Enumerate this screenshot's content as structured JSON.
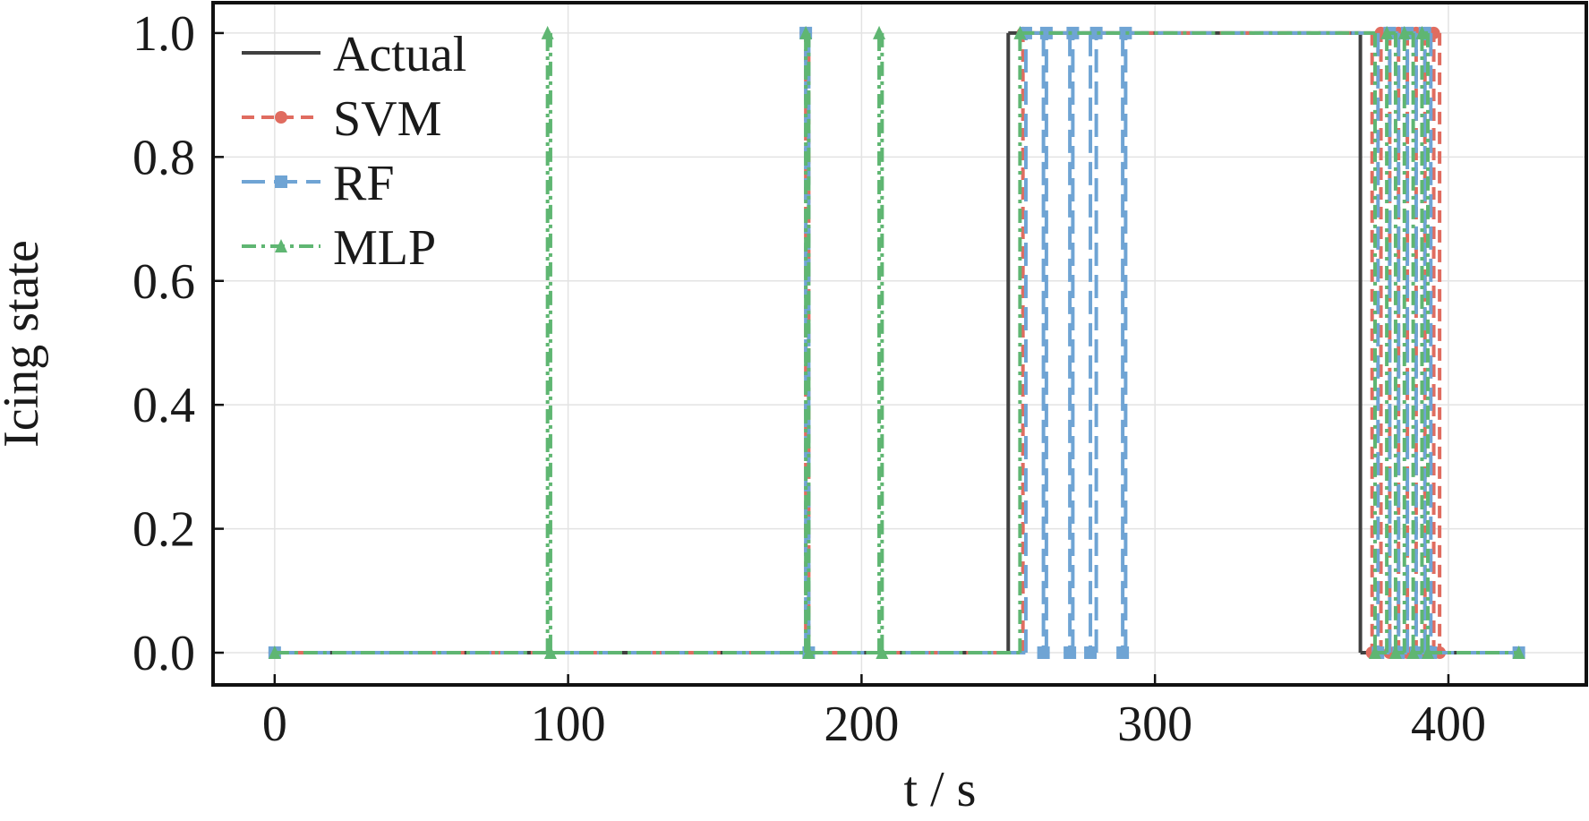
{
  "chart_data": {
    "type": "line",
    "drawstyle": "steps-post",
    "xlabel": "t / s",
    "ylabel": "Icing state",
    "xlim": [
      -21,
      447
    ],
    "ylim": [
      -0.052,
      1.049
    ],
    "xticks": [
      0,
      100,
      200,
      300,
      400
    ],
    "yticks": [
      {
        "value": 0,
        "label": "0.0"
      },
      0.2,
      0.4,
      0.6,
      0.8,
      {
        "value": 1,
        "label": "1.0"
      }
    ],
    "grid": true,
    "legend": "upper left",
    "series": [
      {
        "name": "Actual",
        "color": "#404040",
        "dash": "solid",
        "marker": "none",
        "x": [
          0,
          250,
          370,
          424
        ],
        "values": [
          0,
          1,
          0,
          0
        ]
      },
      {
        "name": "SVM",
        "color": "#e06c60",
        "dash": "dashed",
        "marker": "circle",
        "x": [
          0,
          181,
          182,
          255,
          374,
          377,
          380,
          383,
          386,
          389,
          392,
          395,
          397,
          424
        ],
        "values": [
          0,
          1,
          0,
          1,
          0,
          1,
          0,
          1,
          0,
          1,
          0,
          1,
          0,
          0
        ]
      },
      {
        "name": "RF",
        "color": "#6fa4d4",
        "dash": "longdash",
        "marker": "square",
        "x": [
          0,
          181,
          182,
          256,
          262,
          263,
          271,
          272,
          278,
          280,
          289,
          290,
          376,
          380,
          383,
          386,
          389,
          392,
          394,
          424
        ],
        "values": [
          0,
          1,
          0,
          1,
          0,
          1,
          0,
          1,
          0,
          1,
          0,
          1,
          0,
          1,
          0,
          1,
          0,
          1,
          0,
          0
        ]
      },
      {
        "name": "MLP",
        "color": "#5fb672",
        "dash": "dashdot",
        "marker": "triangle",
        "x": [
          0,
          93,
          94,
          181,
          182,
          206,
          207,
          254,
          375,
          379,
          382,
          385,
          388,
          391,
          393,
          424
        ],
        "values": [
          0,
          1,
          0,
          1,
          0,
          1,
          0,
          1,
          0,
          1,
          0,
          1,
          0,
          1,
          0,
          0
        ]
      }
    ]
  }
}
